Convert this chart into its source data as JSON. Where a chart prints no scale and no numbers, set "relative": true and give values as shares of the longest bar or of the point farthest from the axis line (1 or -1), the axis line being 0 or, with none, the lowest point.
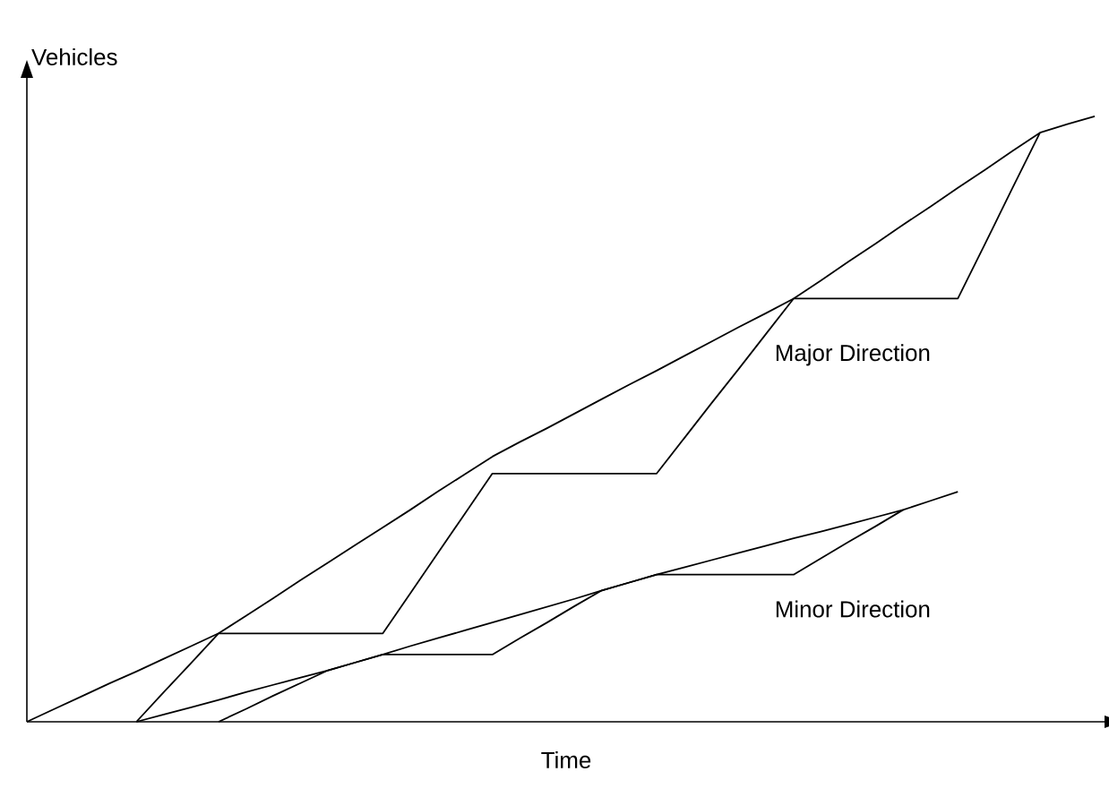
{
  "chart_data": {
    "type": "line",
    "relative": true,
    "xlabel": "Time",
    "ylabel": "Vehicles",
    "line_style": "solid",
    "marker": "none",
    "categories": [
      null,
      null,
      null,
      null,
      null,
      null,
      null,
      null,
      null,
      null,
      null,
      null,
      null,
      null,
      null,
      null,
      null,
      null,
      null,
      null,
      null,
      null,
      null,
      null,
      null,
      null,
      null,
      null,
      null,
      null,
      null,
      null,
      null,
      null,
      null,
      null,
      null,
      null,
      null,
      null
    ],
    "series": [
      {
        "color": "#000000",
        "values": [
          0,
          0.021,
          0.042,
          0.063,
          0.083,
          0.104,
          0.125,
          0.146,
          0.175,
          0.204,
          0.234,
          0.263,
          0.292,
          0.321,
          0.35,
          0.38,
          0.409,
          0.438,
          0.462,
          0.485,
          0.509,
          0.533,
          0.557,
          0.58,
          0.604,
          0.628,
          0.652,
          0.675,
          0.699,
          0.729,
          0.76,
          0.79,
          0.821,
          0.851,
          0.882,
          0.912,
          0.943,
          0.973,
          0.987,
          1
        ]
      },
      {
        "color": "#000000",
        "values": [
          null,
          null,
          null,
          null,
          0,
          0.049,
          0.097,
          0.146,
          0.146,
          0.146,
          0.146,
          0.146,
          0.146,
          0.146,
          0.212,
          0.278,
          0.344,
          0.41,
          0.41,
          0.41,
          0.41,
          0.41,
          0.41,
          0.41,
          0.468,
          0.526,
          0.583,
          0.641,
          0.699,
          0.699,
          0.699,
          0.699,
          0.699,
          0.699,
          0.699,
          0.79,
          0.882,
          0.973,
          null,
          null
        ]
      },
      {
        "color": "#000000",
        "values": [
          null,
          null,
          null,
          null,
          0,
          0.012,
          0.024,
          0.036,
          0.049,
          0.061,
          0.073,
          0.085,
          0.098,
          0.111,
          0.125,
          0.138,
          0.151,
          0.164,
          0.177,
          0.19,
          0.203,
          0.217,
          0.23,
          0.243,
          0.255,
          0.267,
          0.279,
          0.291,
          0.303,
          0.314,
          0.326,
          0.338,
          0.35,
          0.365,
          0.38,
          null,
          null,
          null,
          null,
          null
        ]
      },
      {
        "color": "#000000",
        "values": [
          null,
          null,
          null,
          null,
          null,
          null,
          null,
          0,
          0.021,
          0.043,
          0.064,
          0.085,
          0.098,
          0.111,
          0.111,
          0.111,
          0.111,
          0.111,
          0.138,
          0.164,
          0.191,
          0.217,
          0.23,
          0.243,
          0.243,
          0.243,
          0.243,
          0.243,
          0.243,
          0.27,
          0.297,
          0.323,
          0.35,
          null,
          null,
          null,
          null,
          null,
          null,
          null
        ]
      }
    ],
    "annotations": [
      "Major Direction",
      "Minor Direction"
    ]
  }
}
